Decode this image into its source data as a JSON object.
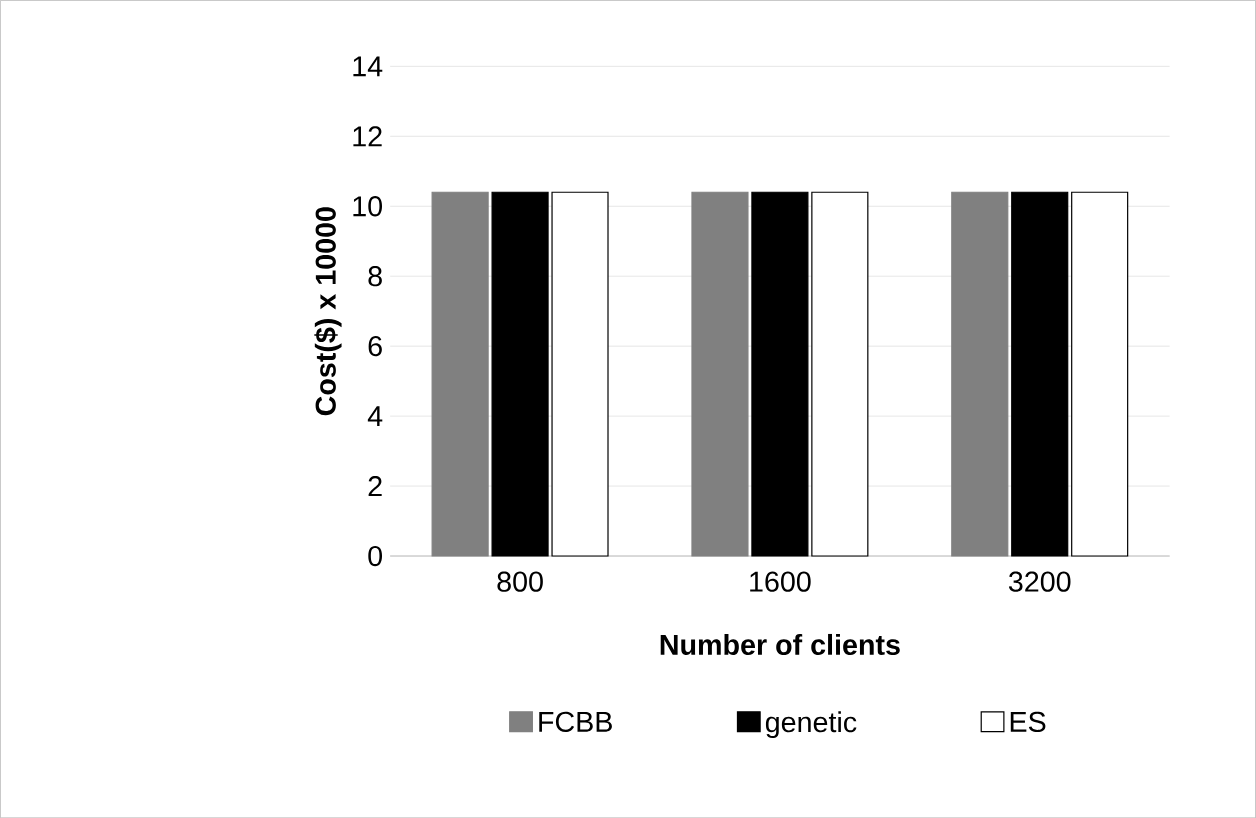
{
  "chart_data": {
    "type": "bar",
    "xlabel": "Number of clients",
    "ylabel": "Cost($) x 10000",
    "categories": [
      "800",
      "1600",
      "3200"
    ],
    "series": [
      {
        "name": "FCBB",
        "color": "#808080",
        "values": [
          10.4,
          10.4,
          10.4
        ]
      },
      {
        "name": "genetic",
        "color": "#000000",
        "values": [
          10.4,
          10.4,
          10.4
        ]
      },
      {
        "name": "ES",
        "color": "#ffffff",
        "values": [
          10.4,
          10.4,
          10.4
        ]
      }
    ],
    "ylim": [
      0,
      14
    ],
    "yticks": [
      0,
      2,
      4,
      6,
      8,
      10,
      12,
      14
    ],
    "grid": "y",
    "legend": "bottom"
  }
}
